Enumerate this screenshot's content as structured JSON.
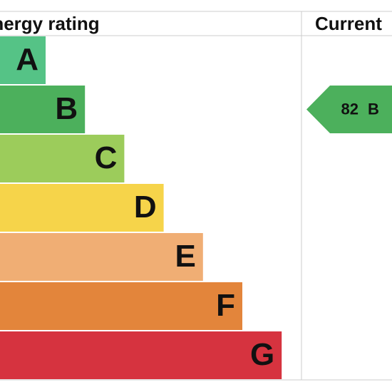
{
  "header": {
    "title": "Energy rating",
    "current": "Current"
  },
  "bands": [
    {
      "letter": "A",
      "color": "#55c386"
    },
    {
      "letter": "B",
      "color": "#4cb05c"
    },
    {
      "letter": "C",
      "color": "#9ccc5b"
    },
    {
      "letter": "D",
      "color": "#f6d44a"
    },
    {
      "letter": "E",
      "color": "#f0ae74"
    },
    {
      "letter": "F",
      "color": "#e3853b"
    },
    {
      "letter": "G",
      "color": "#d6333f"
    }
  ],
  "current": {
    "score": 82,
    "band": "B",
    "color": "#4cb05c"
  }
}
